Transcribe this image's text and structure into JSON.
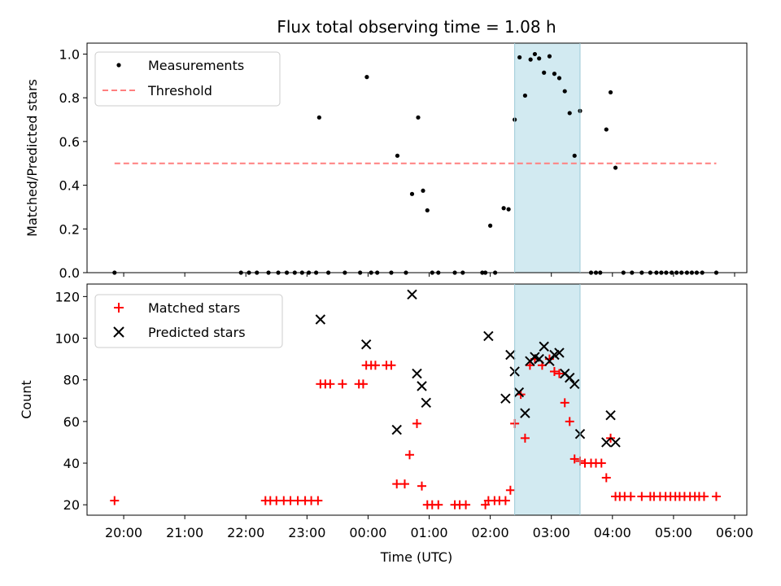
{
  "chart_data": [
    {
      "type": "scatter",
      "title": "Flux total observing time = 1.08 h",
      "xlabel": "",
      "ylabel": "Matched/Predicted stars",
      "xlim": [
        -4.6,
        6.2
      ],
      "ylim": [
        0,
        1.05
      ],
      "yticks": [
        0.0,
        0.2,
        0.4,
        0.6,
        0.8,
        1.0
      ],
      "ytick_labels": [
        "0.0",
        "0.2",
        "0.4",
        "0.6",
        "0.8",
        "1.0"
      ],
      "shaded_region": {
        "x": [
          2.4,
          3.47
        ],
        "color": "#add8e6"
      },
      "legend": {
        "position": "top-left",
        "entries": [
          "Measurements",
          "Threshold"
        ]
      },
      "series": [
        {
          "name": "Measurements",
          "marker": "dot",
          "color": "#000000",
          "points": [
            [
              -4.15,
              0.0
            ],
            [
              -2.08,
              0.0
            ],
            [
              -1.95,
              0.0
            ],
            [
              -1.82,
              0.0
            ],
            [
              -1.63,
              0.0
            ],
            [
              -1.47,
              0.0
            ],
            [
              -1.33,
              0.0
            ],
            [
              -1.2,
              0.0
            ],
            [
              -1.08,
              0.0
            ],
            [
              -0.97,
              0.0
            ],
            [
              -0.85,
              0.0
            ],
            [
              -0.65,
              0.0
            ],
            [
              -0.38,
              0.0
            ],
            [
              -0.13,
              0.0
            ],
            [
              0.05,
              0.0
            ],
            [
              0.15,
              0.0
            ],
            [
              0.38,
              0.0
            ],
            [
              0.62,
              0.0
            ],
            [
              1.05,
              0.0
            ],
            [
              1.15,
              0.0
            ],
            [
              1.42,
              0.0
            ],
            [
              1.55,
              0.0
            ],
            [
              1.87,
              0.0
            ],
            [
              1.92,
              0.0
            ],
            [
              2.08,
              0.0
            ],
            [
              3.65,
              0.0
            ],
            [
              3.73,
              0.0
            ],
            [
              3.8,
              0.0
            ],
            [
              4.18,
              0.0
            ],
            [
              4.32,
              0.0
            ],
            [
              4.48,
              0.0
            ],
            [
              4.62,
              0.0
            ],
            [
              4.72,
              0.0
            ],
            [
              4.8,
              0.0
            ],
            [
              4.88,
              0.0
            ],
            [
              4.97,
              0.0
            ],
            [
              5.05,
              0.0
            ],
            [
              5.13,
              0.0
            ],
            [
              5.22,
              0.0
            ],
            [
              5.3,
              0.0
            ],
            [
              5.38,
              0.0
            ],
            [
              5.47,
              0.0
            ],
            [
              5.7,
              0.0
            ],
            [
              -0.8,
              0.71
            ],
            [
              -0.02,
              0.895
            ],
            [
              0.48,
              0.535
            ],
            [
              0.72,
              0.36
            ],
            [
              0.82,
              0.71
            ],
            [
              0.9,
              0.375
            ],
            [
              0.97,
              0.285
            ],
            [
              2.0,
              0.215
            ],
            [
              2.22,
              0.295
            ],
            [
              2.3,
              0.29
            ],
            [
              2.4,
              0.7
            ],
            [
              2.48,
              0.985
            ],
            [
              2.57,
              0.81
            ],
            [
              2.66,
              0.975
            ],
            [
              2.73,
              1.0
            ],
            [
              2.8,
              0.98
            ],
            [
              2.88,
              0.915
            ],
            [
              2.97,
              0.99
            ],
            [
              3.05,
              0.91
            ],
            [
              3.13,
              0.89
            ],
            [
              3.22,
              0.83
            ],
            [
              3.3,
              0.73
            ],
            [
              3.38,
              0.535
            ],
            [
              3.47,
              0.74
            ],
            [
              3.9,
              0.655
            ],
            [
              3.97,
              0.825
            ],
            [
              4.05,
              0.48
            ]
          ]
        },
        {
          "name": "Threshold",
          "marker": "dashed-line",
          "color": "#ff7f7f",
          "points": [
            [
              -4.15,
              0.5
            ],
            [
              5.7,
              0.5
            ]
          ]
        }
      ]
    },
    {
      "type": "scatter",
      "title": "",
      "xlabel": "Time (UTC)",
      "ylabel": "Count",
      "xlim": [
        -4.6,
        6.2
      ],
      "ylim": [
        15,
        126
      ],
      "xticks": [
        -4,
        -3,
        -2,
        -1,
        0,
        1,
        2,
        3,
        4,
        5,
        6
      ],
      "xtick_labels": [
        "20:00",
        "21:00",
        "22:00",
        "23:00",
        "00:00",
        "01:00",
        "02:00",
        "03:00",
        "04:00",
        "05:00",
        "06:00"
      ],
      "yticks": [
        20,
        40,
        60,
        80,
        100,
        120
      ],
      "ytick_labels": [
        "20",
        "40",
        "60",
        "80",
        "100",
        "120"
      ],
      "shaded_region": {
        "x": [
          2.4,
          3.47
        ],
        "color": "#add8e6"
      },
      "legend": {
        "position": "top-left",
        "entries": [
          "Matched stars",
          "Predicted stars"
        ]
      },
      "series": [
        {
          "name": "Matched stars",
          "marker": "plus",
          "color": "#ff0000",
          "points": [
            [
              -4.15,
              22
            ],
            [
              -1.68,
              22
            ],
            [
              -1.6,
              22
            ],
            [
              -1.5,
              22
            ],
            [
              -1.38,
              22
            ],
            [
              -1.27,
              22
            ],
            [
              -1.15,
              22
            ],
            [
              -1.03,
              22
            ],
            [
              -0.93,
              22
            ],
            [
              -0.82,
              22
            ],
            [
              -0.78,
              78
            ],
            [
              -0.7,
              78
            ],
            [
              -0.62,
              78
            ],
            [
              -0.42,
              78
            ],
            [
              -0.15,
              78
            ],
            [
              -0.08,
              78
            ],
            [
              -0.03,
              87
            ],
            [
              0.05,
              87
            ],
            [
              0.12,
              87
            ],
            [
              0.3,
              87
            ],
            [
              0.38,
              87
            ],
            [
              0.47,
              30
            ],
            [
              0.6,
              30
            ],
            [
              0.68,
              44
            ],
            [
              0.8,
              59
            ],
            [
              0.88,
              29
            ],
            [
              0.97,
              20
            ],
            [
              1.05,
              20
            ],
            [
              1.15,
              20
            ],
            [
              1.42,
              20
            ],
            [
              1.5,
              20
            ],
            [
              1.6,
              20
            ],
            [
              1.92,
              20
            ],
            [
              1.97,
              22
            ],
            [
              2.07,
              22
            ],
            [
              2.15,
              22
            ],
            [
              2.25,
              22
            ],
            [
              2.33,
              27
            ],
            [
              2.4,
              59
            ],
            [
              2.5,
              73
            ],
            [
              2.57,
              52
            ],
            [
              2.65,
              87
            ],
            [
              2.73,
              90
            ],
            [
              2.85,
              87
            ],
            [
              2.97,
              90
            ],
            [
              3.05,
              84
            ],
            [
              3.13,
              83
            ],
            [
              3.22,
              69
            ],
            [
              3.3,
              60
            ],
            [
              3.38,
              42
            ],
            [
              3.47,
              41
            ],
            [
              3.55,
              40
            ],
            [
              3.65,
              40
            ],
            [
              3.73,
              40
            ],
            [
              3.82,
              40
            ],
            [
              3.9,
              33
            ],
            [
              3.97,
              52
            ],
            [
              4.05,
              24
            ],
            [
              4.12,
              24
            ],
            [
              4.2,
              24
            ],
            [
              4.3,
              24
            ],
            [
              4.48,
              24
            ],
            [
              4.62,
              24
            ],
            [
              4.68,
              24
            ],
            [
              4.78,
              24
            ],
            [
              4.87,
              24
            ],
            [
              4.95,
              24
            ],
            [
              5.03,
              24
            ],
            [
              5.1,
              24
            ],
            [
              5.18,
              24
            ],
            [
              5.27,
              24
            ],
            [
              5.35,
              24
            ],
            [
              5.42,
              24
            ],
            [
              5.5,
              24
            ],
            [
              5.7,
              24
            ]
          ]
        },
        {
          "name": "Predicted stars",
          "marker": "x",
          "color": "#000000",
          "points": [
            [
              -0.78,
              109
            ],
            [
              -0.03,
              97
            ],
            [
              0.47,
              56
            ],
            [
              0.72,
              121
            ],
            [
              0.8,
              83
            ],
            [
              0.88,
              77
            ],
            [
              0.95,
              69
            ],
            [
              1.97,
              101
            ],
            [
              2.25,
              71
            ],
            [
              2.33,
              92
            ],
            [
              2.4,
              84
            ],
            [
              2.47,
              74
            ],
            [
              2.57,
              64
            ],
            [
              2.65,
              89
            ],
            [
              2.73,
              91
            ],
            [
              2.8,
              90
            ],
            [
              2.88,
              96
            ],
            [
              2.97,
              89
            ],
            [
              3.05,
              92
            ],
            [
              3.13,
              93
            ],
            [
              3.22,
              83
            ],
            [
              3.3,
              81
            ],
            [
              3.38,
              78
            ],
            [
              3.47,
              54
            ],
            [
              3.9,
              50
            ],
            [
              3.97,
              63
            ],
            [
              4.05,
              50
            ]
          ]
        }
      ]
    }
  ]
}
